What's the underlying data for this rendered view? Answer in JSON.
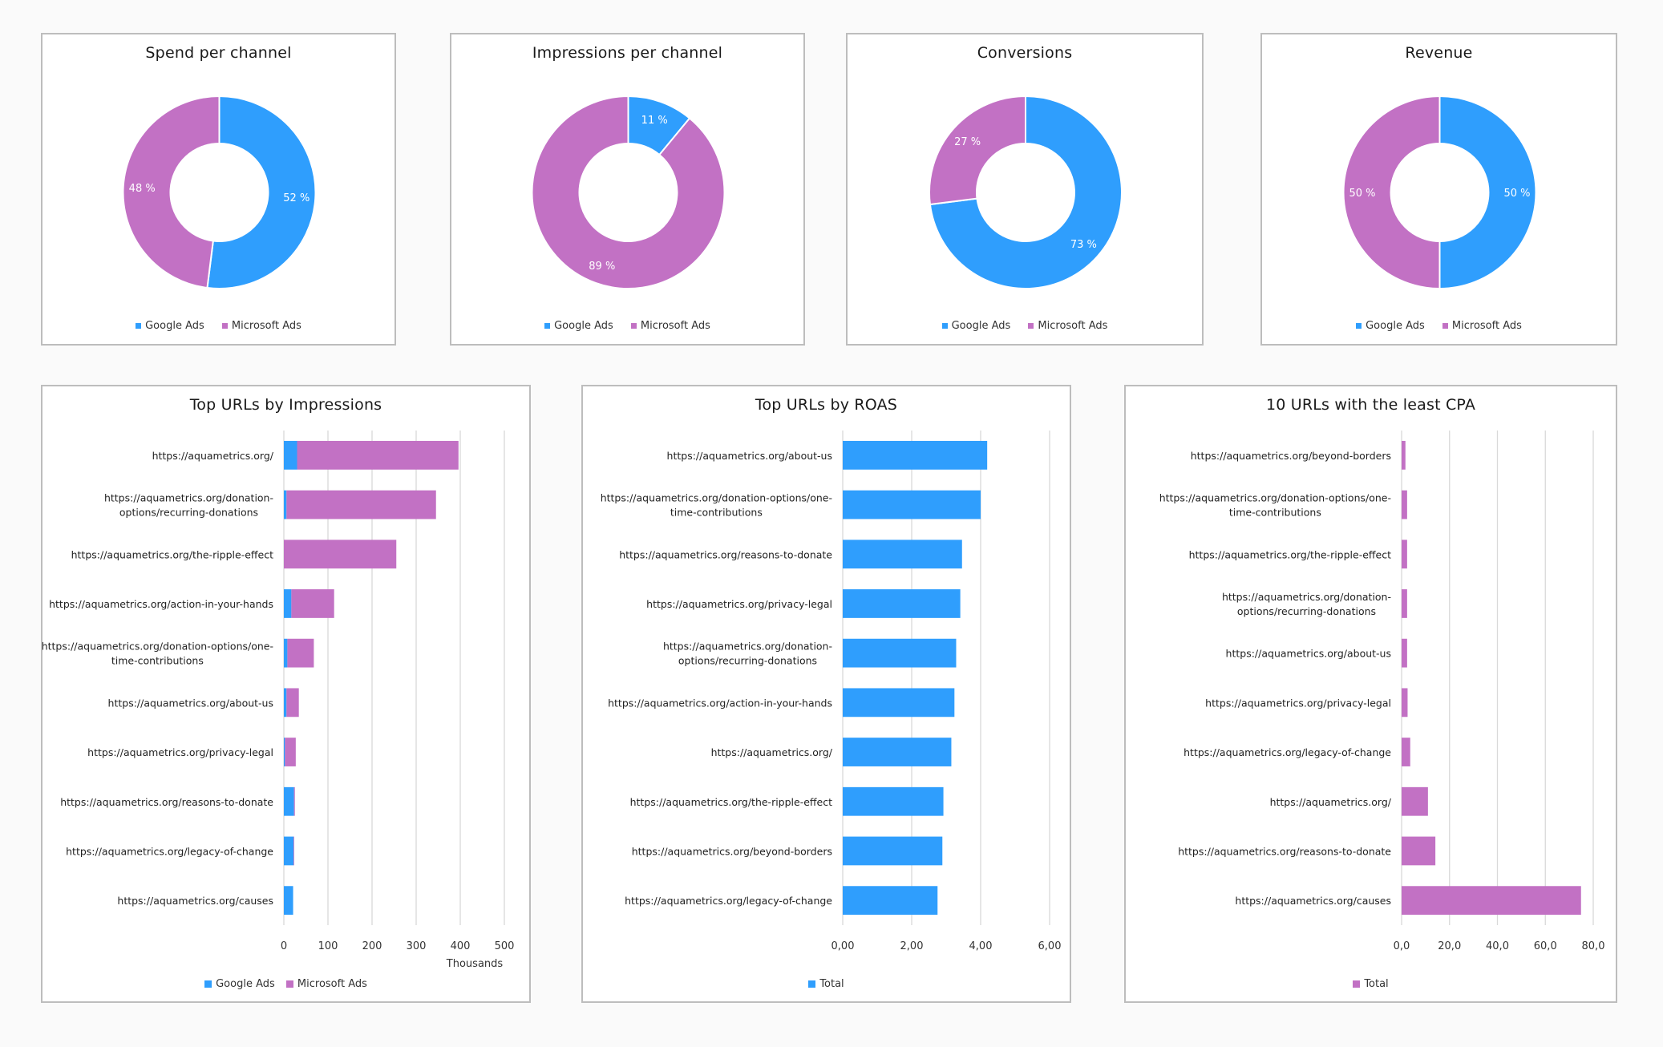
{
  "colors": {
    "google": "#2f9efd",
    "microsoft": "#c271c4",
    "grid": "#d9d9d9",
    "axis": "#d9d9d9"
  },
  "legend": {
    "google": "Google Ads",
    "microsoft": "Microsoft Ads",
    "total": "Total"
  },
  "chart_data": [
    {
      "id": "spend",
      "type": "pie",
      "title": "Spend per channel",
      "categories": [
        "Google Ads",
        "Microsoft Ads"
      ],
      "values": [
        52,
        48
      ],
      "labels": [
        "52 %",
        "48 %"
      ],
      "legend": "bottom"
    },
    {
      "id": "impressions",
      "type": "pie",
      "title": "Impressions per channel",
      "categories": [
        "Google Ads",
        "Microsoft Ads"
      ],
      "values": [
        11,
        89
      ],
      "labels": [
        "11 %",
        "89 %"
      ],
      "legend": "bottom"
    },
    {
      "id": "conversions",
      "type": "pie",
      "title": "Conversions",
      "categories": [
        "Google Ads",
        "Microsoft Ads"
      ],
      "values": [
        73,
        27
      ],
      "labels": [
        "73 %",
        "27 %"
      ],
      "legend": "bottom"
    },
    {
      "id": "revenue",
      "type": "pie",
      "title": "Revenue",
      "categories": [
        "Google Ads",
        "Microsoft Ads"
      ],
      "values": [
        50,
        50
      ],
      "labels": [
        "50 %",
        "50 %"
      ],
      "legend": "bottom"
    },
    {
      "id": "top-impressions",
      "type": "bar",
      "orientation": "horizontal",
      "stacked": true,
      "title": "Top URLs by Impressions",
      "xlabel": "Thousands",
      "xlim": [
        0,
        500
      ],
      "xticks": [
        "0",
        "100",
        "200",
        "300",
        "400",
        "500"
      ],
      "xtick_values": [
        0,
        100,
        200,
        300,
        400,
        500
      ],
      "grid": true,
      "legend": "bottom",
      "categories": [
        [
          "https://aquametrics.org/"
        ],
        [
          "https://aquametrics.org/donation-",
          "options/recurring-donations"
        ],
        [
          "https://aquametrics.org/the-ripple-effect"
        ],
        [
          "https://aquametrics.org/action-in-your-hands"
        ],
        [
          "https://aquametrics.org/donation-options/one-",
          "time-contributions"
        ],
        [
          "https://aquametrics.org/about-us"
        ],
        [
          "https://aquametrics.org/privacy-legal"
        ],
        [
          "https://aquametrics.org/reasons-to-donate"
        ],
        [
          "https://aquametrics.org/legacy-of-change"
        ],
        [
          "https://aquametrics.org/causes"
        ]
      ],
      "series": [
        {
          "name": "Google Ads",
          "values": [
            30,
            6,
            0,
            17,
            8,
            6,
            2.5,
            23,
            22,
            21
          ]
        },
        {
          "name": "Microsoft Ads",
          "values": [
            366,
            339,
            255,
            97,
            60,
            28,
            24.5,
            2,
            1,
            0
          ]
        }
      ]
    },
    {
      "id": "top-roas",
      "type": "bar",
      "orientation": "horizontal",
      "stacked": false,
      "title": "Top URLs by ROAS",
      "xlabel": "",
      "xlim": [
        0,
        6
      ],
      "xticks": [
        "0,00",
        "2,00",
        "4,00",
        "6,00"
      ],
      "xtick_values": [
        0,
        2,
        4,
        6
      ],
      "grid": true,
      "legend": "bottom",
      "categories": [
        [
          "https://aquametrics.org/about-us"
        ],
        [
          "https://aquametrics.org/donation-options/one-",
          "time-contributions"
        ],
        [
          "https://aquametrics.org/reasons-to-donate"
        ],
        [
          "https://aquametrics.org/privacy-legal"
        ],
        [
          "https://aquametrics.org/donation-",
          "options/recurring-donations"
        ],
        [
          "https://aquametrics.org/action-in-your-hands"
        ],
        [
          "https://aquametrics.org/"
        ],
        [
          "https://aquametrics.org/the-ripple-effect"
        ],
        [
          "https://aquametrics.org/beyond-borders"
        ],
        [
          "https://aquametrics.org/legacy-of-change"
        ]
      ],
      "series": [
        {
          "name": "Total",
          "values": [
            4.19,
            4.0,
            3.46,
            3.41,
            3.29,
            3.24,
            3.15,
            2.92,
            2.89,
            2.75
          ]
        }
      ]
    },
    {
      "id": "least-cpa",
      "type": "bar",
      "orientation": "horizontal",
      "stacked": false,
      "title": "10 URLs with the least CPA",
      "xlabel": "",
      "xlim": [
        0,
        80
      ],
      "xticks": [
        "0,0",
        "20,0",
        "40,0",
        "60,0",
        "80,0"
      ],
      "xtick_values": [
        0,
        20,
        40,
        60,
        80
      ],
      "grid": true,
      "legend": "bottom",
      "categories": [
        [
          "https://aquametrics.org/beyond-borders"
        ],
        [
          "https://aquametrics.org/donation-options/one-",
          "time-contributions"
        ],
        [
          "https://aquametrics.org/the-ripple-effect"
        ],
        [
          "https://aquametrics.org/donation-",
          "options/recurring-donations"
        ],
        [
          "https://aquametrics.org/about-us"
        ],
        [
          "https://aquametrics.org/privacy-legal"
        ],
        [
          "https://aquametrics.org/legacy-of-change"
        ],
        [
          "https://aquametrics.org/"
        ],
        [
          "https://aquametrics.org/reasons-to-donate"
        ],
        [
          "https://aquametrics.org/causes"
        ]
      ],
      "series": [
        {
          "name": "Total",
          "values": [
            1.6,
            2.3,
            2.3,
            2.3,
            2.3,
            2.5,
            3.6,
            11.0,
            14.1,
            74.9
          ]
        }
      ]
    }
  ]
}
